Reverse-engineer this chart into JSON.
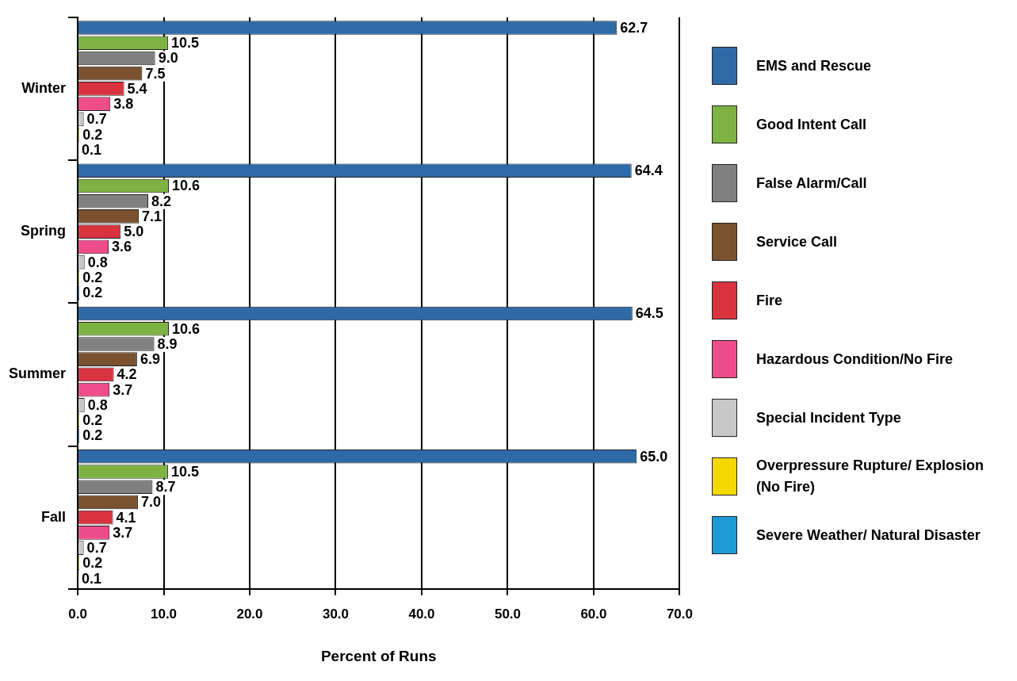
{
  "chart_data": {
    "type": "bar",
    "orientation": "horizontal",
    "xlabel": "Percent of Runs",
    "categories": [
      "Winter",
      "Spring",
      "Summer",
      "Fall"
    ],
    "series": [
      {
        "name": "EMS and Rescue",
        "color": "#2f6aa8",
        "values": [
          62.7,
          64.4,
          64.5,
          65.0
        ],
        "value_labels": [
          "62.7",
          "64.4",
          "64.5",
          "65.0"
        ]
      },
      {
        "name": "Good Intent Call",
        "color": "#7cb342",
        "values": [
          10.5,
          10.6,
          10.6,
          10.5
        ],
        "value_labels": [
          "10.5",
          "10.6",
          "10.6",
          "10.5"
        ]
      },
      {
        "name": "False Alarm/Call",
        "color": "#808080",
        "values": [
          9.0,
          8.2,
          8.9,
          8.7
        ],
        "value_labels": [
          "9.0",
          "8.2",
          "8.9",
          "8.7"
        ]
      },
      {
        "name": "Service Call",
        "color": "#7a5230",
        "values": [
          7.5,
          7.1,
          6.9,
          7.0
        ],
        "value_labels": [
          "7.5",
          "7.1",
          "6.9",
          "7.0"
        ]
      },
      {
        "name": "Fire",
        "color": "#d9333f",
        "values": [
          5.4,
          5.0,
          4.2,
          4.1
        ],
        "value_labels": [
          "5.4",
          "5.0",
          "4.2",
          "4.1"
        ]
      },
      {
        "name": "Hazardous Condition/No Fire",
        "color": "#ee4d8a",
        "values": [
          3.8,
          3.6,
          3.7,
          3.7
        ],
        "value_labels": [
          "3.8",
          "3.6",
          "3.7",
          "3.7"
        ]
      },
      {
        "name": "Special Incident Type",
        "color": "#c8c8c8",
        "values": [
          0.7,
          0.8,
          0.8,
          0.7
        ],
        "value_labels": [
          "0.7",
          "0.8",
          "0.8",
          "0.7"
        ]
      },
      {
        "name": "Overpressure Rupture/ Explosion (No Fire)",
        "color": "#f5d800",
        "values": [
          0.2,
          0.2,
          0.2,
          0.2
        ],
        "value_labels": [
          "0.2",
          "0.2",
          "0.2",
          "0.2"
        ]
      },
      {
        "name": "Severe Weather/ Natural Disaster",
        "color": "#1e9ad6",
        "values": [
          0.1,
          0.2,
          0.2,
          0.1
        ],
        "value_labels": [
          "0.1",
          "0.2",
          "0.2",
          "0.1"
        ]
      }
    ],
    "xlim": [
      0,
      70
    ],
    "xticks": [
      {
        "value": 0,
        "label": "0.0"
      },
      {
        "value": 10,
        "label": "10.0"
      },
      {
        "value": 20,
        "label": "20.0"
      },
      {
        "value": 30,
        "label": "30.0"
      },
      {
        "value": 40,
        "label": "40.0"
      },
      {
        "value": 50,
        "label": "50.0"
      },
      {
        "value": 60,
        "label": "60.0"
      },
      {
        "value": 70,
        "label": "70.0"
      }
    ],
    "grid": "x",
    "legend": "right"
  }
}
